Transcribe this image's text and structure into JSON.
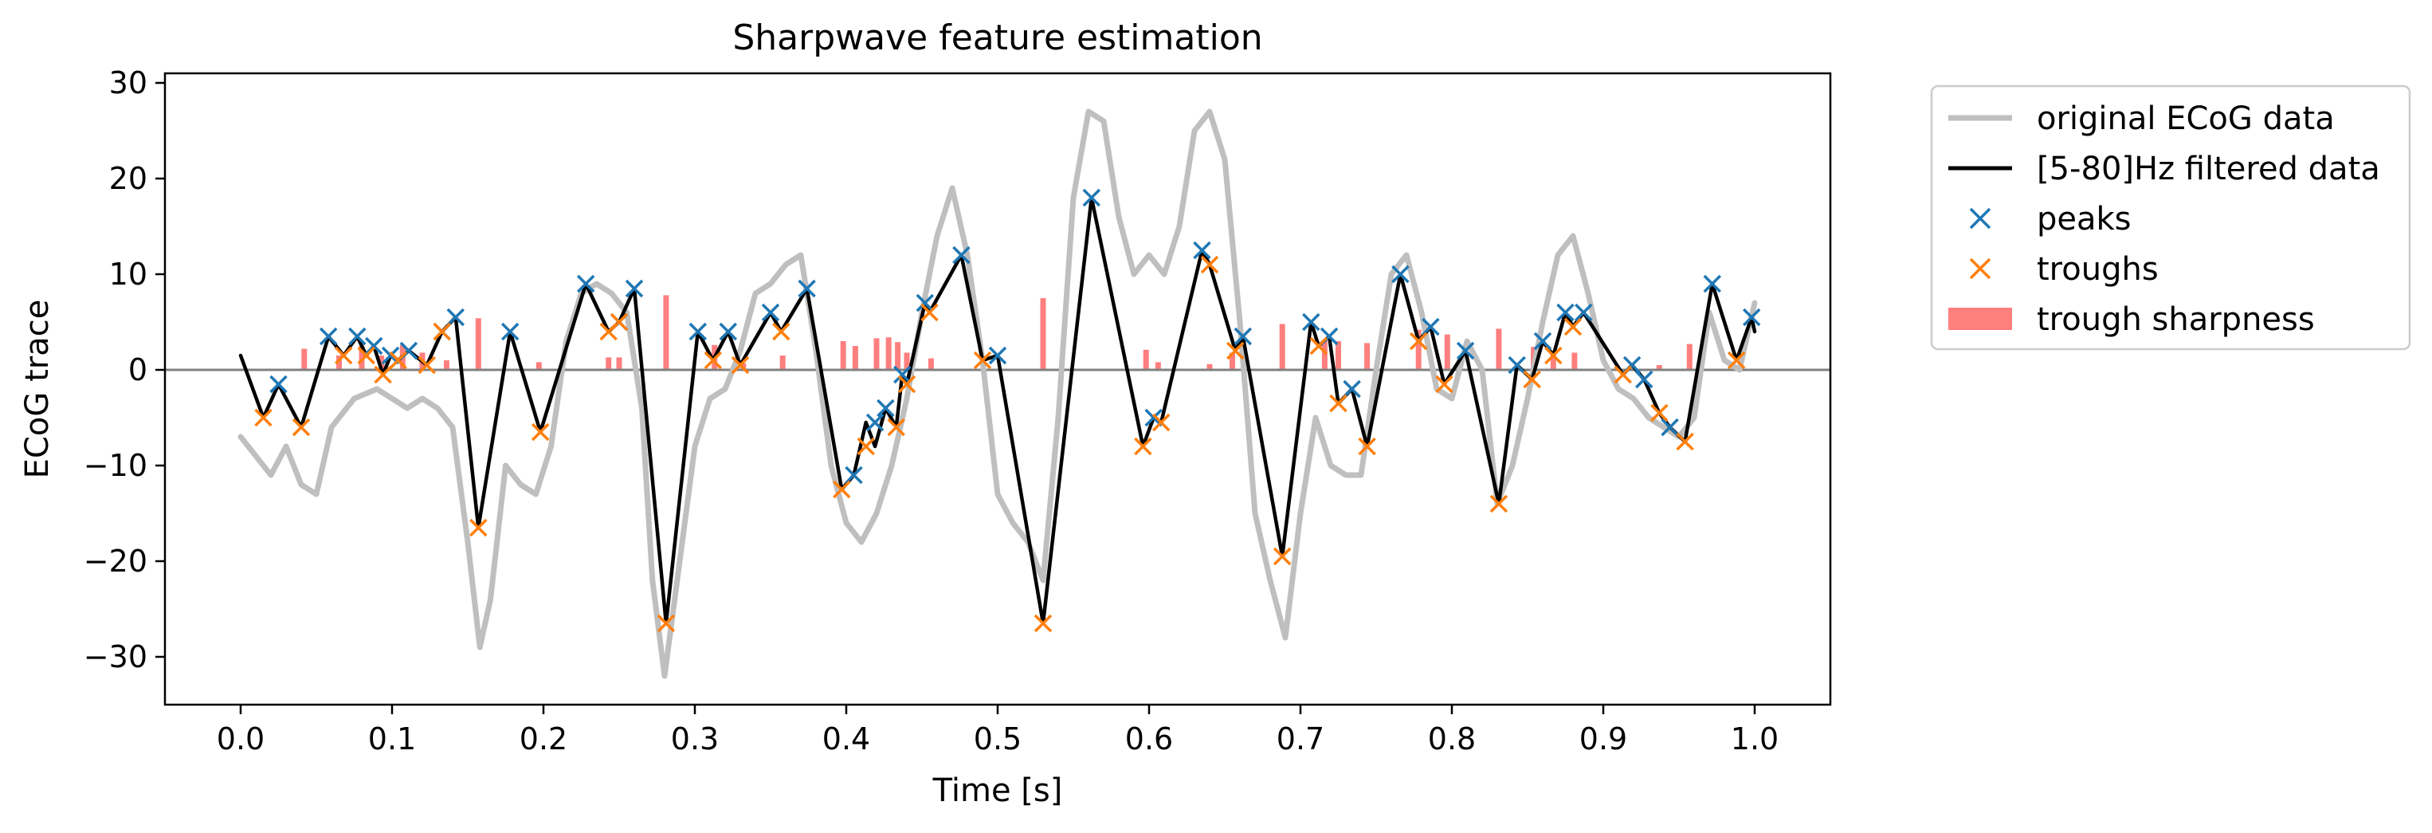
{
  "chart_data": {
    "type": "line",
    "title": "Sharpwave feature estimation",
    "xlabel": "Time [s]",
    "ylabel": "ECoG trace",
    "xlim": [
      -0.05,
      1.05
    ],
    "ylim": [
      -35,
      31
    ],
    "xticks": [
      0.0,
      0.1,
      0.2,
      0.3,
      0.4,
      0.5,
      0.6,
      0.7,
      0.8,
      0.9,
      1.0
    ],
    "xtick_labels": [
      "0.0",
      "0.1",
      "0.2",
      "0.3",
      "0.4",
      "0.5",
      "0.6",
      "0.7",
      "0.8",
      "0.9",
      "1.0"
    ],
    "yticks": [
      -30,
      -20,
      -10,
      0,
      10,
      20,
      30
    ],
    "ytick_labels": [
      "−30",
      "−20",
      "−10",
      "0",
      "10",
      "20",
      "30"
    ],
    "zero_line": 0,
    "grid": false,
    "legend_position": "outside-right-top",
    "colors": {
      "original": "#bfbfbf",
      "filtered": "#000000",
      "peaks": "#1f77b4",
      "troughs": "#ff7f0e",
      "sharpness": "#ff7f7f",
      "zero_line": "#808080"
    },
    "series": [
      {
        "name": "original ECoG data",
        "kind": "line",
        "x": [
          0.0,
          0.01,
          0.02,
          0.03,
          0.04,
          0.05,
          0.06,
          0.075,
          0.09,
          0.1,
          0.11,
          0.12,
          0.13,
          0.14,
          0.15,
          0.158,
          0.165,
          0.175,
          0.185,
          0.195,
          0.205,
          0.215,
          0.225,
          0.235,
          0.245,
          0.255,
          0.265,
          0.272,
          0.28,
          0.29,
          0.3,
          0.31,
          0.32,
          0.33,
          0.34,
          0.35,
          0.36,
          0.37,
          0.38,
          0.39,
          0.4,
          0.41,
          0.42,
          0.43,
          0.44,
          0.45,
          0.46,
          0.47,
          0.48,
          0.49,
          0.5,
          0.51,
          0.52,
          0.53,
          0.54,
          0.55,
          0.56,
          0.57,
          0.58,
          0.59,
          0.6,
          0.61,
          0.62,
          0.63,
          0.64,
          0.65,
          0.66,
          0.67,
          0.68,
          0.69,
          0.7,
          0.71,
          0.72,
          0.73,
          0.74,
          0.75,
          0.76,
          0.77,
          0.78,
          0.79,
          0.8,
          0.81,
          0.82,
          0.83,
          0.84,
          0.85,
          0.86,
          0.87,
          0.88,
          0.89,
          0.9,
          0.91,
          0.92,
          0.93,
          0.94,
          0.95,
          0.96,
          0.97,
          0.98,
          0.99,
          1.0
        ],
        "y": [
          -7,
          -9,
          -11,
          -8,
          -12,
          -13,
          -6,
          -3,
          -2,
          -3,
          -4,
          -3,
          -4,
          -6,
          -18,
          -29,
          -24,
          -10,
          -12,
          -13,
          -8,
          3,
          8,
          9,
          8,
          6,
          -4,
          -22,
          -32,
          -20,
          -8,
          -3,
          -2,
          2,
          8,
          9,
          11,
          12,
          2,
          -10,
          -16,
          -18,
          -15,
          -10,
          -3,
          6,
          14,
          19,
          12,
          1,
          -13,
          -16,
          -18,
          -22,
          -5,
          18,
          27,
          26,
          16,
          10,
          12,
          10,
          15,
          25,
          27,
          22,
          5,
          -15,
          -22,
          -28,
          -15,
          -5,
          -10,
          -11,
          -11,
          0,
          10,
          12,
          6,
          -2,
          -3,
          3,
          0,
          -14,
          -10,
          -3,
          5,
          12,
          14,
          8,
          1,
          -2,
          -3,
          -5,
          -6,
          -7,
          -5,
          6,
          1,
          0,
          7
        ]
      },
      {
        "name": "[5-80]Hz filtered data",
        "kind": "line",
        "x": [
          0.0,
          0.015,
          0.025,
          0.04,
          0.058,
          0.068,
          0.077,
          0.083,
          0.088,
          0.094,
          0.099,
          0.104,
          0.111,
          0.123,
          0.133,
          0.142,
          0.157,
          0.178,
          0.198,
          0.228,
          0.243,
          0.25,
          0.26,
          0.281,
          0.302,
          0.312,
          0.322,
          0.33,
          0.35,
          0.357,
          0.374,
          0.397,
          0.405,
          0.413,
          0.419,
          0.426,
          0.433,
          0.437,
          0.44,
          0.452,
          0.455,
          0.476,
          0.49,
          0.5,
          0.53,
          0.562,
          0.596,
          0.603,
          0.608,
          0.635,
          0.64,
          0.657,
          0.662,
          0.688,
          0.707,
          0.712,
          0.719,
          0.725,
          0.734,
          0.744,
          0.766,
          0.778,
          0.786,
          0.795,
          0.809,
          0.831,
          0.843,
          0.853,
          0.86,
          0.867,
          0.875,
          0.88,
          0.887,
          0.913,
          0.919,
          0.927,
          0.937,
          0.944,
          0.954,
          0.972,
          0.988,
          0.998,
          1.0
        ],
        "y": [
          1.5,
          -5.0,
          -1.5,
          -6.0,
          3.5,
          1.5,
          3.5,
          1.5,
          2.5,
          -0.5,
          1.5,
          1.0,
          2.0,
          0.5,
          4.0,
          5.5,
          -16.5,
          4.0,
          -6.5,
          9.0,
          4.0,
          5.0,
          8.5,
          -26.5,
          4.0,
          1.0,
          4.0,
          0.5,
          6.0,
          4.0,
          8.5,
          -12.5,
          -11.0,
          -5.5,
          -8.0,
          -4.0,
          -6.0,
          -0.5,
          -1.5,
          7.0,
          6.0,
          12.0,
          1.0,
          1.5,
          -26.5,
          18.0,
          -8.0,
          -5.0,
          -5.5,
          12.5,
          11.0,
          2.0,
          3.5,
          -19.5,
          5.0,
          2.5,
          3.5,
          -3.5,
          -2.0,
          -8.0,
          10.0,
          3.0,
          4.5,
          -1.5,
          2.0,
          -14.0,
          0.5,
          -1.0,
          3.0,
          1.5,
          6.0,
          4.5,
          6.0,
          -0.5,
          0.5,
          -1.0,
          -4.5,
          -6.0,
          -7.5,
          9.0,
          1.0,
          5.5,
          4.0
        ]
      }
    ],
    "peaks": {
      "name": "peaks",
      "x": [
        0.025,
        0.058,
        0.077,
        0.088,
        0.099,
        0.111,
        0.133,
        0.142,
        0.178,
        0.228,
        0.25,
        0.26,
        0.302,
        0.322,
        0.35,
        0.374,
        0.405,
        0.419,
        0.426,
        0.437,
        0.452,
        0.476,
        0.5,
        0.562,
        0.603,
        0.635,
        0.662,
        0.707,
        0.719,
        0.734,
        0.766,
        0.786,
        0.809,
        0.843,
        0.86,
        0.875,
        0.887,
        0.919,
        0.927,
        0.944,
        0.972,
        0.998
      ],
      "y": [
        -1.5,
        3.5,
        3.5,
        2.5,
        1.5,
        2.0,
        4.0,
        5.5,
        4.0,
        9.0,
        5.0,
        8.5,
        4.0,
        4.0,
        6.0,
        8.5,
        -11.0,
        -5.5,
        -4.0,
        -0.5,
        7.0,
        12.0,
        1.5,
        18.0,
        -5.0,
        12.5,
        3.5,
        5.0,
        3.5,
        -2.0,
        10.0,
        4.5,
        2.0,
        0.5,
        3.0,
        6.0,
        6.0,
        0.5,
        -1.0,
        -6.0,
        9.0,
        5.5
      ]
    },
    "troughs": {
      "name": "troughs",
      "x": [
        0.015,
        0.04,
        0.068,
        0.083,
        0.094,
        0.104,
        0.123,
        0.133,
        0.157,
        0.198,
        0.243,
        0.25,
        0.281,
        0.312,
        0.33,
        0.357,
        0.397,
        0.413,
        0.433,
        0.44,
        0.455,
        0.49,
        0.53,
        0.596,
        0.608,
        0.64,
        0.657,
        0.688,
        0.712,
        0.725,
        0.744,
        0.778,
        0.795,
        0.831,
        0.853,
        0.867,
        0.88,
        0.913,
        0.937,
        0.954,
        0.988
      ],
      "y": [
        -5.0,
        -6.0,
        1.5,
        1.5,
        -0.5,
        1.0,
        0.5,
        4.0,
        -16.5,
        -6.5,
        4.0,
        5.0,
        -26.5,
        1.0,
        0.5,
        4.0,
        -12.5,
        -8.0,
        -6.0,
        -1.5,
        6.0,
        1.0,
        -26.5,
        -8.0,
        -5.5,
        11.0,
        2.0,
        -19.5,
        2.5,
        -3.5,
        -8.0,
        3.0,
        -1.5,
        -14.0,
        -1.0,
        1.5,
        4.5,
        -0.5,
        -4.5,
        -7.5,
        1.0
      ]
    },
    "bars": {
      "name": "trough sharpness",
      "x": [
        0.042,
        0.065,
        0.08,
        0.093,
        0.107,
        0.12,
        0.136,
        0.157,
        0.197,
        0.243,
        0.25,
        0.281,
        0.313,
        0.332,
        0.358,
        0.398,
        0.406,
        0.42,
        0.428,
        0.434,
        0.44,
        0.456,
        0.53,
        0.598,
        0.606,
        0.64,
        0.655,
        0.688,
        0.716,
        0.725,
        0.744,
        0.778,
        0.797,
        0.831,
        0.854,
        0.867,
        0.881,
        0.937,
        0.957
      ],
      "y": [
        2.2,
        1.5,
        2.5,
        1.5,
        2.6,
        1.8,
        1.0,
        5.4,
        0.8,
        1.3,
        1.3,
        7.8,
        2.6,
        0.7,
        1.5,
        3.0,
        2.5,
        3.3,
        3.4,
        2.9,
        1.8,
        1.2,
        7.5,
        2.1,
        0.8,
        0.6,
        1.8,
        4.8,
        3.0,
        3.0,
        2.8,
        4.2,
        3.7,
        4.3,
        2.4,
        2.0,
        1.8,
        0.5,
        2.7
      ]
    }
  }
}
